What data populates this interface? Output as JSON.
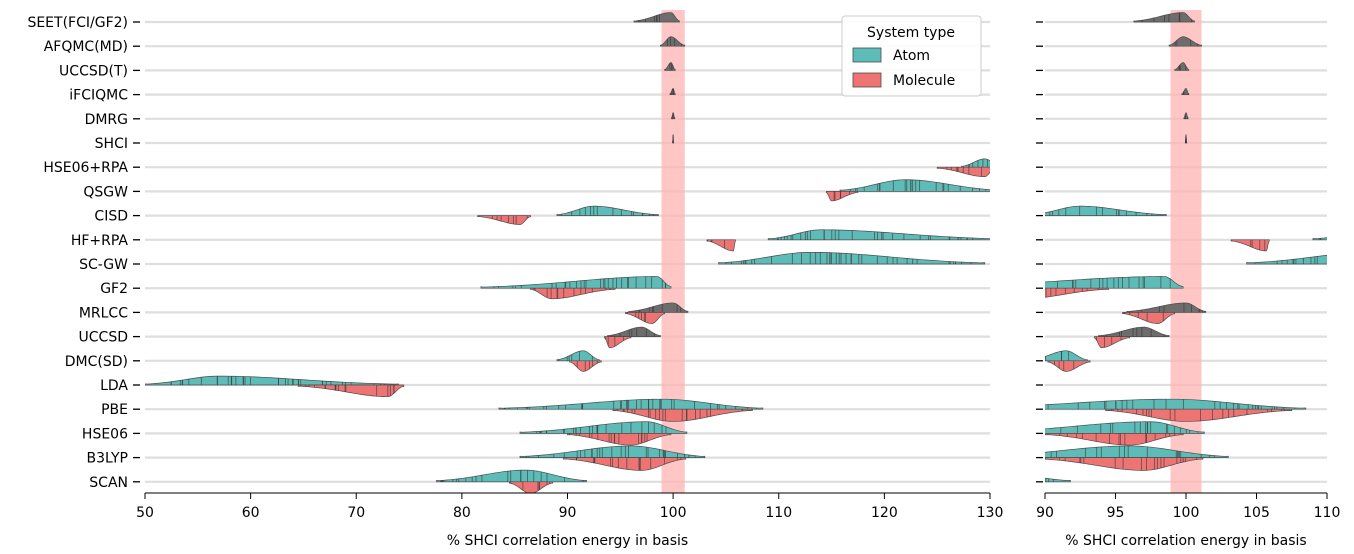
{
  "chart_data": {
    "type": "violin",
    "methods": [
      "SEET(FCI/GF2)",
      "AFQMC(MD)",
      "UCCSD(T)",
      "iFCIQMC",
      "DMRG",
      "SHCI",
      "HSE06+RPA",
      "QSGW",
      "CISD",
      "HF+RPA",
      "SC-GW",
      "GF2",
      "MRLCC",
      "UCCSD",
      "DMC(SD)",
      "LDA",
      "PBE",
      "HSE06",
      "B3LYP",
      "SCAN"
    ],
    "legend": {
      "title": "System type",
      "placement": "top-right",
      "entries": [
        {
          "label": "Atom",
          "color": "#5dbcb7"
        },
        {
          "label": "Molecule",
          "color": "#ee7474"
        }
      ]
    },
    "reference_band": {
      "from": 98.9,
      "to": 101.1,
      "color": "#ffb3b3"
    },
    "panels": [
      {
        "name": "full-range",
        "xlim": [
          50,
          130
        ],
        "xticks": [
          "50",
          "60",
          "70",
          "80",
          "90",
          "100",
          "110",
          "120",
          "130"
        ],
        "xlabel": "% SHCI correlation energy in basis",
        "show_method_labels": true
      },
      {
        "name": "zoomed",
        "xlim": [
          90,
          110
        ],
        "xticks": [
          "90",
          "95",
          "100",
          "105",
          "110"
        ],
        "xlabel": "% SHCI correlation energy in basis",
        "show_method_labels": false
      }
    ],
    "series": [
      {
        "method": "SEET(FCI/GF2)",
        "system": "Atom",
        "range": [
          96.3,
          100.6
        ],
        "peak": 99.8,
        "height": 0.34,
        "gray": true
      },
      {
        "method": "AFQMC(MD)",
        "system": "Atom",
        "range": [
          98.8,
          101.1
        ],
        "peak": 99.8,
        "height": 0.34,
        "gray": true
      },
      {
        "method": "UCCSD(T)",
        "system": "Atom",
        "range": [
          99.2,
          100.2
        ],
        "peak": 99.8,
        "height": 0.28,
        "gray": true
      },
      {
        "method": "iFCIQMC",
        "system": "Atom",
        "range": [
          99.7,
          100.2
        ],
        "peak": 100.0,
        "height": 0.22,
        "gray": true
      },
      {
        "method": "DMRG",
        "system": "Atom",
        "range": [
          99.85,
          100.15
        ],
        "peak": 100.0,
        "height": 0.22,
        "gray": true
      },
      {
        "method": "SHCI",
        "system": "Atom",
        "range": [
          99.95,
          100.05
        ],
        "peak": 100.0,
        "height": 0.3,
        "gray": true
      },
      {
        "method": "HSE06+RPA",
        "system": "Atom",
        "range": [
          127.3,
          131.0
        ],
        "peak": 129.5,
        "height": 0.3
      },
      {
        "method": "HSE06+RPA",
        "system": "Molecule",
        "range": [
          125.0,
          130.5
        ],
        "peak": 129.5,
        "height": 0.34
      },
      {
        "method": "QSGW",
        "system": "Atom",
        "range": [
          115.8,
          131.0
        ],
        "peak": 122.0,
        "height": 0.42
      },
      {
        "method": "QSGW",
        "system": "Molecule",
        "range": [
          114.5,
          117.5
        ],
        "peak": 115.0,
        "height": 0.34
      },
      {
        "method": "CISD",
        "system": "Atom",
        "range": [
          89.0,
          98.6
        ],
        "peak": 92.5,
        "height": 0.34
      },
      {
        "method": "CISD",
        "system": "Molecule",
        "range": [
          81.5,
          86.5
        ],
        "peak": 85.5,
        "height": 0.32
      },
      {
        "method": "HF+RPA",
        "system": "Atom",
        "range": [
          109.0,
          131.0
        ],
        "peak": 114.0,
        "height": 0.36
      },
      {
        "method": "HF+RPA",
        "system": "Molecule",
        "range": [
          103.2,
          105.9
        ],
        "peak": 105.7,
        "height": 0.4
      },
      {
        "method": "SC-GW",
        "system": "Atom",
        "range": [
          104.3,
          129.5
        ],
        "peak": 113.0,
        "height": 0.42
      },
      {
        "method": "GF2",
        "system": "Atom",
        "range": [
          81.8,
          99.8
        ],
        "peak": 98.5,
        "height": 0.42
      },
      {
        "method": "GF2",
        "system": "Molecule",
        "range": [
          86.5,
          94.5
        ],
        "peak": 88.5,
        "height": 0.38
      },
      {
        "method": "MRLCC",
        "system": "Atom",
        "range": [
          95.8,
          101.4
        ],
        "peak": 100.0,
        "height": 0.34,
        "gray": true
      },
      {
        "method": "MRLCC",
        "system": "Molecule",
        "range": [
          95.5,
          99.2
        ],
        "peak": 98.0,
        "height": 0.4
      },
      {
        "method": "UCCSD",
        "system": "Atom",
        "range": [
          93.8,
          98.8
        ],
        "peak": 97.0,
        "height": 0.34,
        "gray": true
      },
      {
        "method": "UCCSD",
        "system": "Molecule",
        "range": [
          93.5,
          96.0
        ],
        "peak": 94.0,
        "height": 0.4
      },
      {
        "method": "DMC(SD)",
        "system": "Atom",
        "range": [
          89.0,
          93.0
        ],
        "peak": 91.5,
        "height": 0.36
      },
      {
        "method": "DMC(SD)",
        "system": "Molecule",
        "range": [
          90.2,
          93.2
        ],
        "peak": 91.5,
        "height": 0.38
      },
      {
        "method": "LDA",
        "system": "Atom",
        "range": [
          50.0,
          74.0
        ],
        "peak": 57.0,
        "height": 0.32
      },
      {
        "method": "LDA",
        "system": "Molecule",
        "range": [
          64.5,
          74.5
        ],
        "peak": 73.0,
        "height": 0.42
      },
      {
        "method": "PBE",
        "system": "Atom",
        "range": [
          83.5,
          108.5
        ],
        "peak": 99.0,
        "height": 0.36
      },
      {
        "method": "PBE",
        "system": "Molecule",
        "range": [
          94.3,
          107.5
        ],
        "peak": 100.0,
        "height": 0.44
      },
      {
        "method": "HSE06",
        "system": "Atom",
        "range": [
          85.5,
          101.3
        ],
        "peak": 97.5,
        "height": 0.42
      },
      {
        "method": "HSE06",
        "system": "Molecule",
        "range": [
          90.0,
          99.8
        ],
        "peak": 96.0,
        "height": 0.42
      },
      {
        "method": "B3LYP",
        "system": "Atom",
        "range": [
          85.5,
          103.0
        ],
        "peak": 96.0,
        "height": 0.42
      },
      {
        "method": "B3LYP",
        "system": "Molecule",
        "range": [
          89.6,
          101.2
        ],
        "peak": 97.0,
        "height": 0.46
      },
      {
        "method": "SCAN",
        "system": "Atom",
        "range": [
          77.6,
          91.8
        ],
        "peak": 86.0,
        "height": 0.42
      },
      {
        "method": "SCAN",
        "system": "Molecule",
        "range": [
          84.5,
          88.6
        ],
        "peak": 86.5,
        "height": 0.42
      }
    ]
  }
}
